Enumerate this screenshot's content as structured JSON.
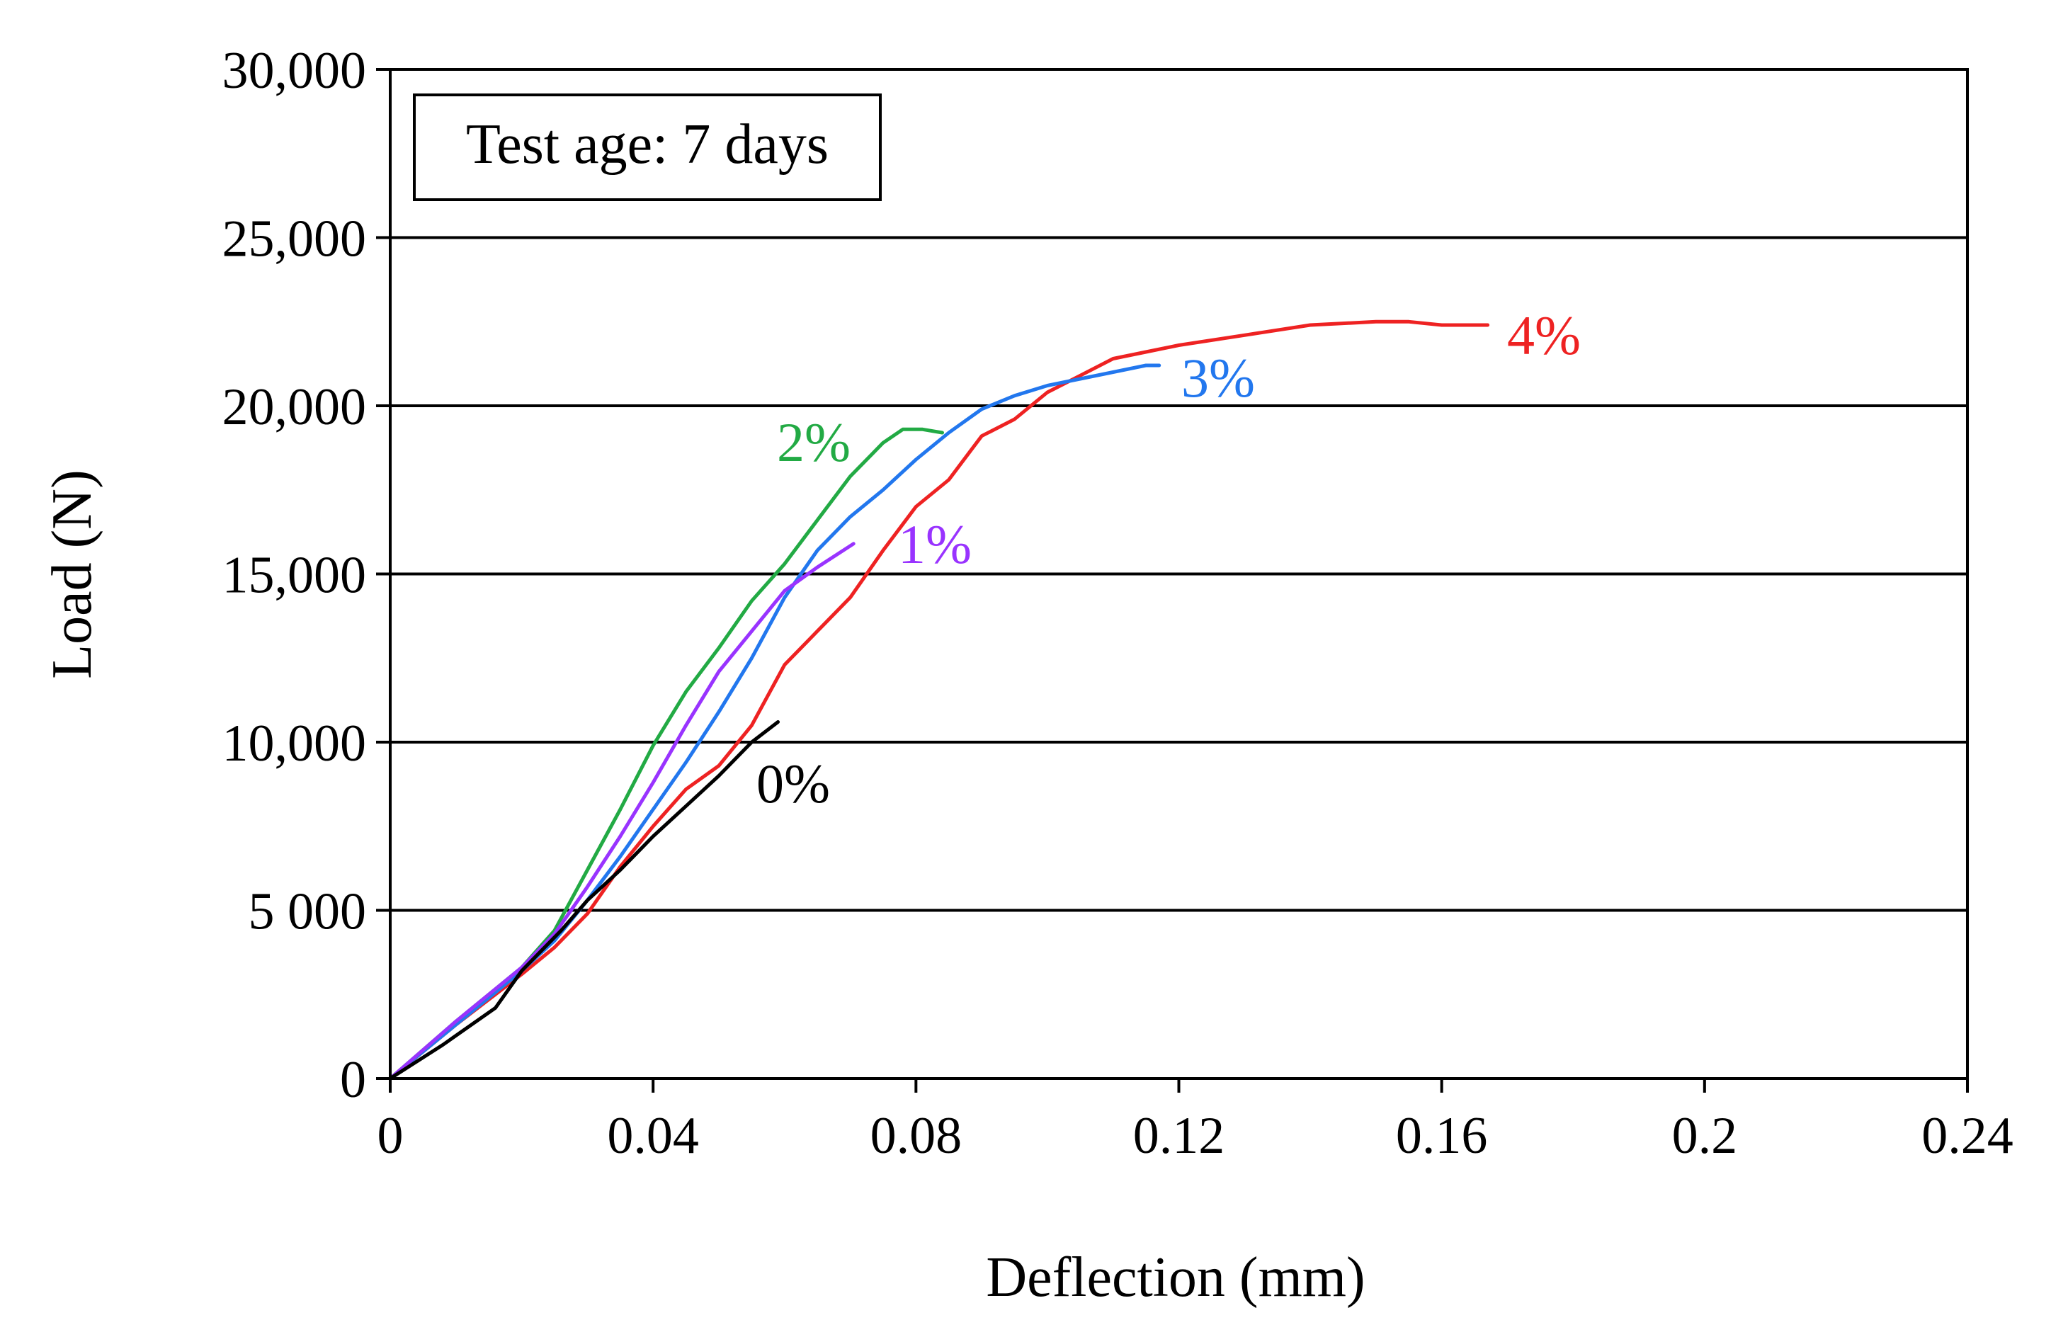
{
  "chart_data": {
    "type": "line",
    "title": "",
    "annotation": "Test age: 7 days",
    "xlabel": "Deflection (mm)",
    "ylabel": "Load (N)",
    "xlim": [
      0,
      0.24
    ],
    "ylim": [
      0,
      30000
    ],
    "xticks": [
      0,
      0.04,
      0.08,
      0.12,
      0.16,
      0.2,
      0.24
    ],
    "xtick_labels": [
      "0",
      "0.04",
      "0.08",
      "0.12",
      "0.16",
      "0.2",
      "0.24"
    ],
    "yticks": [
      0,
      5000,
      10000,
      15000,
      20000,
      25000,
      30000
    ],
    "ytick_labels": [
      "0",
      "5 000",
      "10,000",
      "15,000",
      "20,000",
      "25,000",
      "30,000"
    ],
    "grid": "horizontal",
    "series": [
      {
        "name": "0%",
        "color": "#000000",
        "x": [
          0,
          0.008,
          0.016,
          0.02,
          0.026,
          0.03,
          0.035,
          0.04,
          0.045,
          0.05,
          0.055,
          0.059
        ],
        "y": [
          0,
          1000,
          2100,
          3200,
          4400,
          5300,
          6200,
          7200,
          8100,
          9000,
          10000,
          10600
        ]
      },
      {
        "name": "1%",
        "color": "#9933ff",
        "x": [
          0,
          0.01,
          0.02,
          0.025,
          0.03,
          0.035,
          0.04,
          0.045,
          0.05,
          0.055,
          0.06,
          0.065,
          0.0705
        ],
        "y": [
          0,
          1700,
          3300,
          4300,
          5700,
          7200,
          8800,
          10500,
          12100,
          13300,
          14500,
          15200,
          15900
        ]
      },
      {
        "name": "2%",
        "color": "#22aa44",
        "x": [
          0,
          0.01,
          0.02,
          0.025,
          0.03,
          0.035,
          0.04,
          0.045,
          0.05,
          0.055,
          0.06,
          0.065,
          0.07,
          0.075,
          0.078,
          0.081,
          0.084
        ],
        "y": [
          0,
          1700,
          3300,
          4400,
          6200,
          8000,
          9900,
          11500,
          12800,
          14200,
          15300,
          16600,
          17900,
          18900,
          19300,
          19300,
          19200
        ]
      },
      {
        "name": "3%",
        "color": "#2277ee",
        "x": [
          0,
          0.01,
          0.02,
          0.025,
          0.03,
          0.035,
          0.04,
          0.045,
          0.05,
          0.055,
          0.06,
          0.065,
          0.07,
          0.075,
          0.08,
          0.085,
          0.09,
          0.095,
          0.1,
          0.105,
          0.11,
          0.115,
          0.117
        ],
        "y": [
          0,
          1600,
          3200,
          4100,
          5300,
          6600,
          8000,
          9400,
          10900,
          12500,
          14300,
          15700,
          16700,
          17500,
          18400,
          19200,
          19900,
          20300,
          20600,
          20800,
          21000,
          21200,
          21200
        ]
      },
      {
        "name": "4%",
        "color": "#ee2222",
        "x": [
          0,
          0.01,
          0.02,
          0.025,
          0.03,
          0.035,
          0.04,
          0.045,
          0.05,
          0.055,
          0.06,
          0.065,
          0.07,
          0.075,
          0.08,
          0.085,
          0.09,
          0.095,
          0.1,
          0.105,
          0.11,
          0.115,
          0.12,
          0.13,
          0.14,
          0.15,
          0.155,
          0.16,
          0.167
        ],
        "y": [
          0,
          1600,
          3100,
          3900,
          4900,
          6300,
          7500,
          8600,
          9300,
          10500,
          12300,
          13300,
          14300,
          15700,
          17000,
          17800,
          19100,
          19600,
          20400,
          20900,
          21400,
          21600,
          21800,
          22100,
          22400,
          22500,
          22500,
          22400,
          22400
        ]
      }
    ],
    "series_labels": [
      "0%",
      "1%",
      "2%",
      "3%",
      "4%"
    ]
  }
}
